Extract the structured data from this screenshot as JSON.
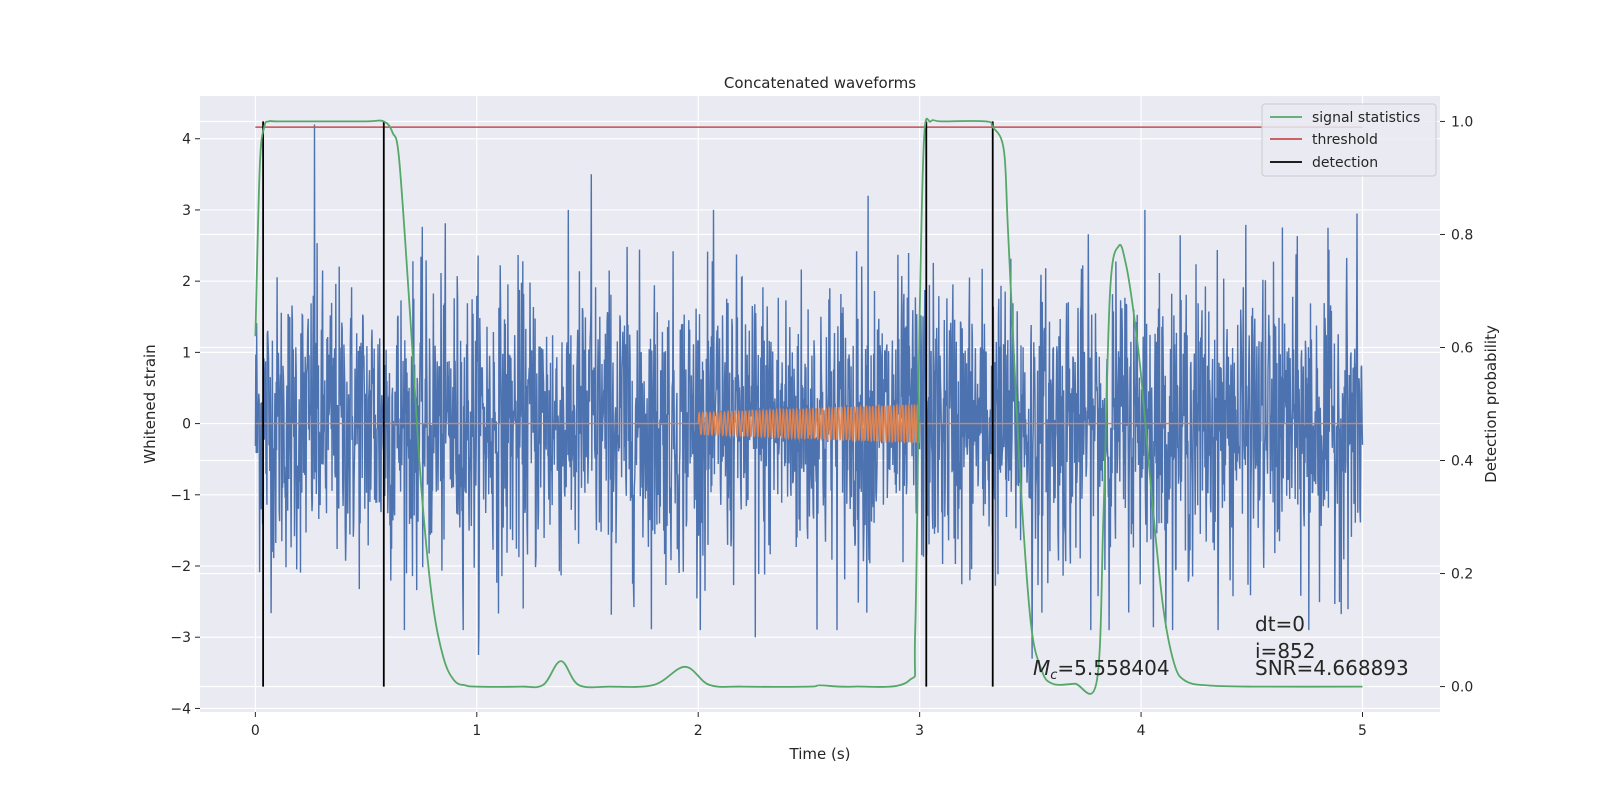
{
  "chart_data": {
    "type": "line",
    "title": "Concatenated waveforms",
    "xlabel": "Time (s)",
    "ylabel": "Whitened strain",
    "y2label": "Detection probability",
    "xlim": [
      -0.25,
      5.35
    ],
    "ylim": [
      -4.05,
      4.6
    ],
    "y2lim": [
      -0.045,
      1.045
    ],
    "xticks": [
      0,
      1,
      2,
      3,
      4,
      5
    ],
    "yticks": [
      -4,
      -3,
      -2,
      -1,
      0,
      1,
      2,
      3,
      4
    ],
    "y2ticks": [
      0.0,
      0.2,
      0.4,
      0.6,
      0.8,
      1.0
    ],
    "x_tick_labels": [
      "0",
      "1",
      "2",
      "3",
      "4",
      "5"
    ],
    "y_tick_labels": [
      "−4",
      "−3",
      "−2",
      "−1",
      "0",
      "1",
      "2",
      "3",
      "4"
    ],
    "y2_tick_labels": [
      "0.0",
      "0.2",
      "0.4",
      "0.6",
      "0.8",
      "1.0"
    ],
    "grid": true,
    "legend_position": "top-right",
    "colors": {
      "strain": "#4c72b0",
      "template": "#dd8452",
      "signal_statistics": "#55a868",
      "threshold": "#c44e52",
      "detection": "#000000",
      "axes_bg": "#eaeaf2",
      "grid": "#ffffff"
    },
    "series": [
      {
        "name": "signal statistics",
        "axis": "right",
        "x": [
          0.0,
          0.02,
          0.04,
          0.06,
          0.1,
          0.3,
          0.5,
          0.58,
          0.62,
          0.65,
          0.7,
          0.75,
          0.8,
          0.85,
          0.9,
          0.95,
          1.0,
          1.2,
          1.3,
          1.38,
          1.46,
          1.6,
          1.8,
          1.94,
          2.05,
          2.2,
          2.5,
          2.55,
          2.7,
          2.95,
          2.98,
          3.0,
          3.02,
          3.05,
          3.1,
          3.3,
          3.33,
          3.38,
          3.4,
          3.45,
          3.5,
          3.55,
          3.6,
          3.7,
          3.8,
          3.83,
          3.86,
          3.9,
          3.93,
          3.96,
          4.0,
          4.05,
          4.1,
          4.15,
          4.2,
          4.3,
          4.5,
          5.0
        ],
        "values": [
          0.62,
          0.92,
          0.99,
          1.0,
          1.0,
          1.0,
          1.0,
          1.0,
          0.98,
          0.93,
          0.65,
          0.35,
          0.15,
          0.05,
          0.01,
          0.002,
          0.0,
          0.0,
          0.003,
          0.045,
          0.003,
          0.0,
          0.003,
          0.035,
          0.003,
          0.0,
          0.0,
          0.002,
          0.0,
          0.01,
          0.1,
          0.65,
          0.97,
          1.0,
          1.0,
          1.0,
          0.99,
          0.95,
          0.8,
          0.4,
          0.12,
          0.03,
          0.005,
          0.005,
          0.01,
          0.3,
          0.7,
          0.78,
          0.75,
          0.68,
          0.55,
          0.33,
          0.14,
          0.04,
          0.01,
          0.002,
          0.0,
          0.0
        ]
      },
      {
        "name": "threshold",
        "axis": "right",
        "x": [
          0.0,
          5.0
        ],
        "values": [
          0.99,
          0.99
        ]
      },
      {
        "name": "detection",
        "axis": "right",
        "type": "vlines",
        "x": [
          0.035,
          0.58,
          3.03,
          3.33
        ],
        "ymin": 0.0,
        "ymax": 1.0
      },
      {
        "name": "whitened strain",
        "axis": "left",
        "type": "noise",
        "x_range": [
          0.0,
          5.0
        ],
        "envelope_typical": 1.3,
        "extreme_values": [
          4.2,
          -3.25,
          3.5,
          -3.0,
          3.2,
          -3.3,
          3.0,
          -2.9
        ]
      },
      {
        "name": "template",
        "axis": "left",
        "type": "chirp",
        "x_range": [
          2.0,
          3.0
        ],
        "amp_start": 0.15,
        "amp_end": 0.27,
        "baseline_range": [
          0.0,
          5.0
        ]
      }
    ],
    "annotations": {
      "dt": "dt=0",
      "i": "i=852",
      "mc": "=5.558404",
      "snr": "SNR=4.668893"
    }
  }
}
